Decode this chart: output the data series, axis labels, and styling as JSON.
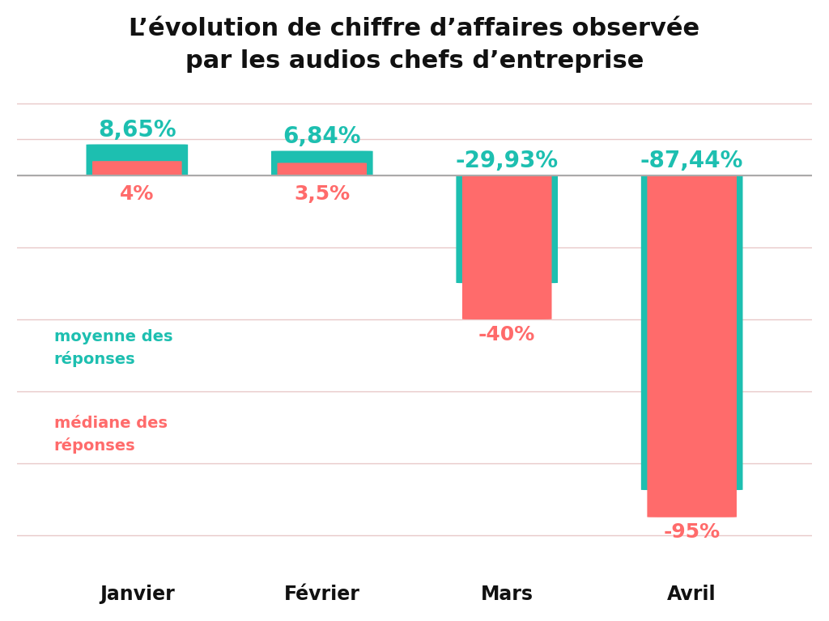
{
  "title_line1": "L’évolution de chiffre d’affaires observée",
  "title_line2": "par les audios chefs d’entreprise",
  "categories": [
    "Janvier",
    "Février",
    "Mars",
    "Avril"
  ],
  "moyenne": [
    8.65,
    6.84,
    -29.93,
    -87.44
  ],
  "mediane": [
    4.0,
    3.5,
    -40.0,
    -95.0
  ],
  "moyenne_labels": [
    "8,65%",
    "6,84%",
    "-29,93%",
    "-87,44%"
  ],
  "mediane_labels": [
    "4%",
    "3,5%",
    "-40%",
    "-95%"
  ],
  "color_moyenne": "#1DBFB0",
  "color_mediane": "#FF6B6B",
  "background_color": "#FFFFFF",
  "legend_moyenne": "moyenne des\nréponses",
  "legend_mediane": "médiane des\nréponses",
  "ylim_min": -110,
  "ylim_max": 22,
  "bar_width": 0.55,
  "grid_color": "#E8C8C8",
  "baseline_color": "#AAAAAA"
}
